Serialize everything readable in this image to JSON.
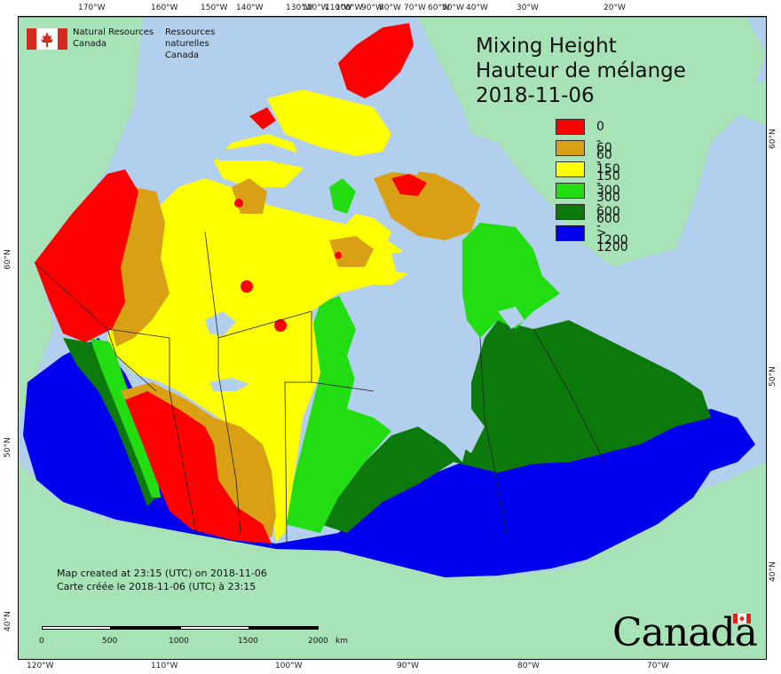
{
  "header": {
    "agency_en_line1": "Natural Resources",
    "agency_en_line2": "Canada",
    "agency_fr_line1": "Ressources naturelles",
    "agency_fr_line2": "Canada"
  },
  "title": {
    "en": "Mixing Height",
    "fr": "Hauteur de mélange",
    "date": "2018-11-06"
  },
  "legend": [
    {
      "label": "0 - 60",
      "color": "#ff0000"
    },
    {
      "label": "60 - 150",
      "color": "#d9a016"
    },
    {
      "label": "150 - 300",
      "color": "#ffff00"
    },
    {
      "label": "300 - 600",
      "color": "#22dd11"
    },
    {
      "label": "600 - 1200",
      "color": "#0b7a0b"
    },
    {
      "label": "> 1200",
      "color": "#0000ee"
    }
  ],
  "footer": {
    "created_en": "Map created at 23:15 (UTC) on 2018-11-06",
    "created_fr": "Carte créée le 2018-11-06 (UTC) à 23:15",
    "wordmark": "Canada"
  },
  "scale": {
    "labels": [
      "0",
      "500",
      "1000",
      "1500",
      "2000"
    ],
    "unit": "km"
  },
  "graticule": {
    "top": [
      "170°W",
      "160°W",
      "150°W",
      "140°W",
      "130°W",
      "120°W",
      "110°W",
      "100°W",
      "90°W",
      "80°W",
      "70°W",
      "60°W",
      "50°W",
      "40°W",
      "30°W",
      "20°W"
    ],
    "bottom": [
      "120°W",
      "110°W",
      "100°W",
      "90°W",
      "80°W",
      "70°W"
    ],
    "left": [
      "60°N",
      "50°N",
      "40°N"
    ],
    "right": [
      "60°N",
      "50°N",
      "40°N"
    ]
  },
  "colors": {
    "ocean": "#b3cfee",
    "land_outside": "#a8e2b7",
    "border": "#222222"
  }
}
